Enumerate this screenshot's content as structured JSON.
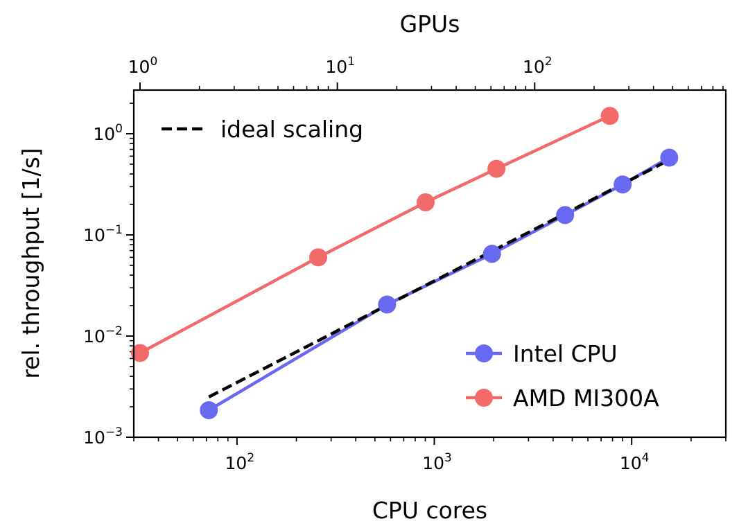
{
  "chart_data": {
    "type": "line",
    "scale": "log-log",
    "xlabel_bottom": "CPU cores",
    "xlabel_top": "GPUs",
    "ylabel": "rel. throughput [1/s]",
    "xlim_bottom": [
      30,
      30000
    ],
    "xlim_top": [
      0.93,
      930
    ],
    "ylim": [
      0.001,
      2.7
    ],
    "bottom_ticks": [
      {
        "value": 100,
        "base": "10",
        "exp": "2"
      },
      {
        "value": 1000,
        "base": "10",
        "exp": "3"
      },
      {
        "value": 10000,
        "base": "10",
        "exp": "4"
      }
    ],
    "top_ticks": [
      {
        "value": 1,
        "base": "10",
        "exp": "0"
      },
      {
        "value": 10,
        "base": "10",
        "exp": "1"
      },
      {
        "value": 100,
        "base": "10",
        "exp": "2"
      }
    ],
    "y_ticks": [
      {
        "value": 0.001,
        "base": "10",
        "exp": "−3"
      },
      {
        "value": 0.01,
        "base": "10",
        "exp": "−2"
      },
      {
        "value": 0.1,
        "base": "10",
        "exp": "−1"
      },
      {
        "value": 1,
        "base": "10",
        "exp": "0"
      }
    ],
    "series": [
      {
        "name": "Intel CPU",
        "axis": "bottom",
        "color": "#6868F0",
        "x": [
          72,
          576,
          1960,
          4600,
          9000,
          15500
        ],
        "y": [
          0.00185,
          0.0205,
          0.065,
          0.157,
          0.315,
          0.58
        ]
      },
      {
        "name": "AMD MI300A",
        "axis": "top",
        "color": "#F26A6A",
        "x": [
          1,
          8,
          28,
          64,
          240
        ],
        "y": [
          0.0068,
          0.06,
          0.21,
          0.45,
          1.5
        ]
      }
    ],
    "reference": {
      "name": "ideal scaling",
      "axis": "bottom",
      "color": "#000000",
      "style": "dashed",
      "x": [
        72,
        15500
      ],
      "y": [
        0.0025,
        0.55
      ]
    },
    "legends": [
      {
        "placement": "top-left",
        "entries": [
          "ideal scaling"
        ]
      },
      {
        "placement": "bottom-right",
        "entries": [
          "Intel CPU",
          "AMD MI300A"
        ]
      }
    ]
  }
}
